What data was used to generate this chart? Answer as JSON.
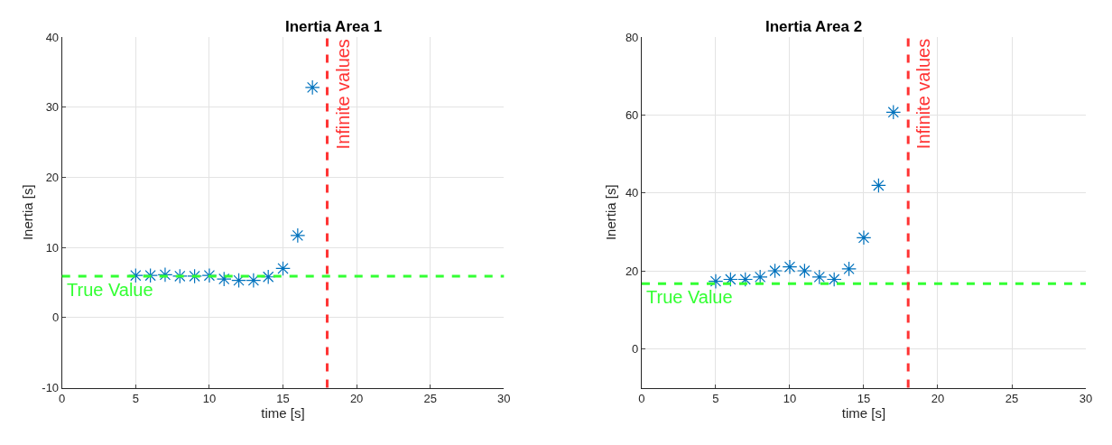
{
  "chart_data": [
    {
      "type": "scatter",
      "title": "Inertia Area 1",
      "xlabel": "time [s]",
      "ylabel": "Inertia [s]",
      "marker": "cross",
      "grid": true,
      "x": [
        5,
        6,
        7,
        8,
        9,
        10,
        11,
        12,
        13,
        14,
        15,
        16,
        17
      ],
      "series": [
        {
          "color": "#0072bd",
          "values": [
            6.0,
            6.0,
            6.1,
            5.9,
            5.9,
            6.0,
            5.5,
            5.3,
            5.3,
            5.8,
            7.0,
            11.7,
            32.8
          ]
        }
      ],
      "xlim": [
        0,
        30
      ],
      "xticks": [
        0,
        5,
        10,
        15,
        20,
        25,
        30
      ],
      "ylim": [
        -10,
        40
      ],
      "yticks": [
        -10,
        0,
        10,
        20,
        30,
        40
      ],
      "ref_lines": [
        {
          "axis": "y",
          "value": 5.9,
          "label": "True Value",
          "color": "#33ff33",
          "line_style": "dashed"
        },
        {
          "axis": "x",
          "value": 18,
          "label": "Infinite values",
          "color": "#ff3333",
          "line_style": "dashed"
        }
      ]
    },
    {
      "type": "scatter",
      "title": "Inertia Area 2",
      "xlabel": "time [s]",
      "ylabel": "Inertia [s]",
      "marker": "cross",
      "grid": true,
      "x": [
        5,
        6,
        7,
        8,
        9,
        10,
        11,
        12,
        13,
        14,
        15,
        16,
        17
      ],
      "series": [
        {
          "color": "#0072bd",
          "values": [
            17.3,
            17.8,
            17.8,
            18.4,
            20.0,
            21.0,
            20.0,
            18.4,
            17.8,
            20.5,
            28.5,
            41.9,
            60.7
          ]
        }
      ],
      "xlim": [
        0,
        30
      ],
      "xticks": [
        0,
        5,
        10,
        15,
        20,
        25,
        30
      ],
      "ylim": [
        -10,
        80
      ],
      "yticks": [
        0,
        20,
        40,
        60,
        80
      ],
      "ref_lines": [
        {
          "axis": "y",
          "value": 16.7,
          "label": "True Value",
          "color": "#33ff33",
          "line_style": "dashed"
        },
        {
          "axis": "x",
          "value": 18,
          "label": "Infinite values",
          "color": "#ff3333",
          "line_style": "dashed"
        }
      ]
    }
  ]
}
